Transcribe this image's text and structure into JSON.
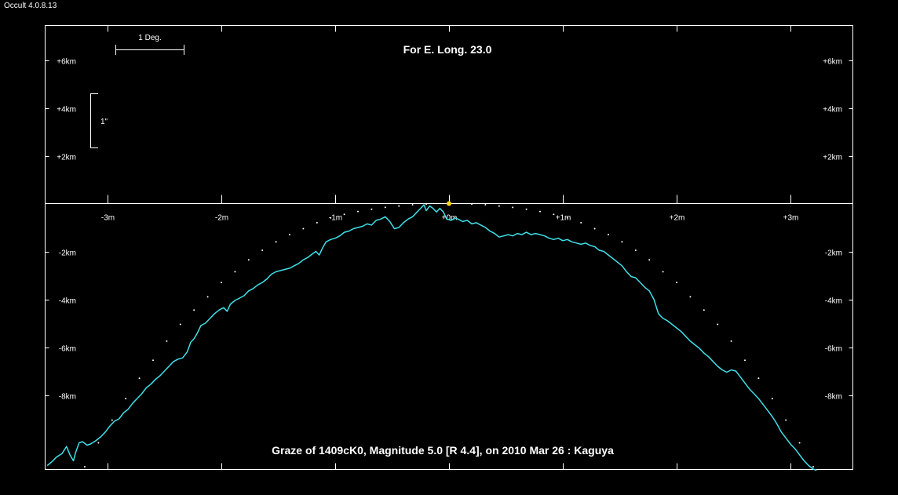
{
  "window": {
    "title": "Occult 4.0.8.13"
  },
  "colors": {
    "background": "#000000",
    "foreground": "#ffffff",
    "profile": "#3fe0e8",
    "star": "#ffd700"
  },
  "chart_data": {
    "type": "line",
    "title": "For E. Long. 23.0",
    "caption": "Graze of  1409cK0,  Magnitude 5.0 [R 4.4],  on 2010 Mar 26  :  Kaguya",
    "scale_bar_deg": "1 Deg.",
    "scale_bar_arcsec": "1\"",
    "x_unit": "m",
    "y_unit": "km",
    "xlim": [
      -3.55,
      3.55
    ],
    "ylim": [
      -11.2,
      7.4
    ],
    "x_ticks": [
      {
        "value": -3,
        "label": "-3m"
      },
      {
        "value": -2,
        "label": "-2m"
      },
      {
        "value": -1,
        "label": "-1m"
      },
      {
        "value": 0,
        "label": "+0m"
      },
      {
        "value": 1,
        "label": "+1m"
      },
      {
        "value": 2,
        "label": "+2m"
      },
      {
        "value": 3,
        "label": "+3m"
      }
    ],
    "y_ticks_left": [
      {
        "value": 6,
        "label": "+6km"
      },
      {
        "value": 4,
        "label": "+4km"
      },
      {
        "value": 2,
        "label": "+2km"
      },
      {
        "value": -2,
        "label": "-2km"
      },
      {
        "value": -4,
        "label": "-4km"
      },
      {
        "value": -6,
        "label": "-6km"
      },
      {
        "value": -8,
        "label": "-8km"
      }
    ],
    "y_ticks_right": [
      {
        "value": 6,
        "label": "+6km"
      },
      {
        "value": 4,
        "label": "+4km"
      },
      {
        "value": 2,
        "label": "+2km"
      },
      {
        "value": -2,
        "label": "-2km"
      },
      {
        "value": -4,
        "label": "-4km"
      },
      {
        "value": -6,
        "label": "-6km"
      },
      {
        "value": -8,
        "label": "-8km"
      }
    ],
    "star": {
      "x": 0.0,
      "y": 0.0
    },
    "series": [
      {
        "style": "line",
        "points": [
          [
            -3.53,
            -10.95
          ],
          [
            -3.48,
            -10.75
          ],
          [
            -3.45,
            -10.6
          ],
          [
            -3.4,
            -10.45
          ],
          [
            -3.36,
            -10.15
          ],
          [
            -3.33,
            -10.5
          ],
          [
            -3.3,
            -10.75
          ],
          [
            -3.28,
            -10.4
          ],
          [
            -3.25,
            -10.0
          ],
          [
            -3.22,
            -9.95
          ],
          [
            -3.18,
            -10.1
          ],
          [
            -3.15,
            -10.05
          ],
          [
            -3.1,
            -9.9
          ],
          [
            -3.06,
            -9.75
          ],
          [
            -3.02,
            -9.55
          ],
          [
            -2.98,
            -9.3
          ],
          [
            -2.94,
            -9.1
          ],
          [
            -2.9,
            -9.0
          ],
          [
            -2.86,
            -8.75
          ],
          [
            -2.82,
            -8.6
          ],
          [
            -2.78,
            -8.35
          ],
          [
            -2.74,
            -8.15
          ],
          [
            -2.7,
            -7.95
          ],
          [
            -2.66,
            -7.7
          ],
          [
            -2.62,
            -7.55
          ],
          [
            -2.58,
            -7.35
          ],
          [
            -2.54,
            -7.2
          ],
          [
            -2.5,
            -7.0
          ],
          [
            -2.46,
            -6.8
          ],
          [
            -2.42,
            -6.6
          ],
          [
            -2.38,
            -6.5
          ],
          [
            -2.34,
            -6.45
          ],
          [
            -2.3,
            -6.2
          ],
          [
            -2.27,
            -5.8
          ],
          [
            -2.24,
            -5.65
          ],
          [
            -2.21,
            -5.4
          ],
          [
            -2.18,
            -5.1
          ],
          [
            -2.14,
            -5.0
          ],
          [
            -2.1,
            -4.8
          ],
          [
            -2.06,
            -4.6
          ],
          [
            -2.02,
            -4.45
          ],
          [
            -1.98,
            -4.35
          ],
          [
            -1.95,
            -4.5
          ],
          [
            -1.92,
            -4.2
          ],
          [
            -1.88,
            -4.05
          ],
          [
            -1.84,
            -3.95
          ],
          [
            -1.8,
            -3.85
          ],
          [
            -1.76,
            -3.65
          ],
          [
            -1.72,
            -3.55
          ],
          [
            -1.68,
            -3.4
          ],
          [
            -1.64,
            -3.3
          ],
          [
            -1.6,
            -3.15
          ],
          [
            -1.56,
            -2.95
          ],
          [
            -1.52,
            -2.85
          ],
          [
            -1.48,
            -2.8
          ],
          [
            -1.44,
            -2.75
          ],
          [
            -1.4,
            -2.7
          ],
          [
            -1.36,
            -2.6
          ],
          [
            -1.32,
            -2.5
          ],
          [
            -1.28,
            -2.35
          ],
          [
            -1.24,
            -2.25
          ],
          [
            -1.2,
            -2.1
          ],
          [
            -1.17,
            -2.0
          ],
          [
            -1.14,
            -2.15
          ],
          [
            -1.11,
            -1.85
          ],
          [
            -1.08,
            -1.6
          ],
          [
            -1.04,
            -1.5
          ],
          [
            -1.0,
            -1.45
          ],
          [
            -0.96,
            -1.35
          ],
          [
            -0.92,
            -1.2
          ],
          [
            -0.88,
            -1.15
          ],
          [
            -0.84,
            -1.05
          ],
          [
            -0.8,
            -1.0
          ],
          [
            -0.76,
            -0.95
          ],
          [
            -0.72,
            -0.85
          ],
          [
            -0.68,
            -0.9
          ],
          [
            -0.64,
            -0.7
          ],
          [
            -0.6,
            -0.65
          ],
          [
            -0.56,
            -0.55
          ],
          [
            -0.52,
            -0.75
          ],
          [
            -0.48,
            -1.05
          ],
          [
            -0.44,
            -1.0
          ],
          [
            -0.4,
            -0.8
          ],
          [
            -0.36,
            -0.65
          ],
          [
            -0.32,
            -0.55
          ],
          [
            -0.28,
            -0.35
          ],
          [
            -0.25,
            -0.2
          ],
          [
            -0.22,
            -0.05
          ],
          [
            -0.2,
            -0.3
          ],
          [
            -0.17,
            -0.1
          ],
          [
            -0.14,
            -0.2
          ],
          [
            -0.11,
            -0.35
          ],
          [
            -0.08,
            -0.2
          ],
          [
            -0.05,
            -0.35
          ],
          [
            -0.02,
            -0.65
          ],
          [
            0.02,
            -0.7
          ],
          [
            0.05,
            -0.6
          ],
          [
            0.08,
            -0.65
          ],
          [
            0.12,
            -0.75
          ],
          [
            0.16,
            -0.7
          ],
          [
            0.2,
            -0.85
          ],
          [
            0.24,
            -0.8
          ],
          [
            0.28,
            -0.9
          ],
          [
            0.32,
            -1.0
          ],
          [
            0.36,
            -1.15
          ],
          [
            0.4,
            -1.25
          ],
          [
            0.44,
            -1.4
          ],
          [
            0.48,
            -1.35
          ],
          [
            0.52,
            -1.3
          ],
          [
            0.56,
            -1.35
          ],
          [
            0.6,
            -1.25
          ],
          [
            0.64,
            -1.3
          ],
          [
            0.68,
            -1.2
          ],
          [
            0.72,
            -1.3
          ],
          [
            0.76,
            -1.25
          ],
          [
            0.8,
            -1.3
          ],
          [
            0.84,
            -1.35
          ],
          [
            0.88,
            -1.45
          ],
          [
            0.92,
            -1.5
          ],
          [
            0.96,
            -1.45
          ],
          [
            1.0,
            -1.55
          ],
          [
            1.04,
            -1.5
          ],
          [
            1.08,
            -1.6
          ],
          [
            1.12,
            -1.65
          ],
          [
            1.16,
            -1.7
          ],
          [
            1.2,
            -1.65
          ],
          [
            1.24,
            -1.75
          ],
          [
            1.28,
            -1.8
          ],
          [
            1.32,
            -1.95
          ],
          [
            1.36,
            -2.0
          ],
          [
            1.4,
            -2.15
          ],
          [
            1.44,
            -2.3
          ],
          [
            1.48,
            -2.45
          ],
          [
            1.52,
            -2.6
          ],
          [
            1.56,
            -2.85
          ],
          [
            1.6,
            -3.05
          ],
          [
            1.64,
            -3.1
          ],
          [
            1.68,
            -3.3
          ],
          [
            1.72,
            -3.5
          ],
          [
            1.76,
            -3.65
          ],
          [
            1.8,
            -4.0
          ],
          [
            1.84,
            -4.6
          ],
          [
            1.88,
            -4.8
          ],
          [
            1.92,
            -4.9
          ],
          [
            1.96,
            -5.05
          ],
          [
            2.0,
            -5.2
          ],
          [
            2.04,
            -5.35
          ],
          [
            2.08,
            -5.55
          ],
          [
            2.12,
            -5.75
          ],
          [
            2.16,
            -5.9
          ],
          [
            2.2,
            -6.05
          ],
          [
            2.24,
            -6.25
          ],
          [
            2.28,
            -6.4
          ],
          [
            2.32,
            -6.6
          ],
          [
            2.36,
            -6.8
          ],
          [
            2.4,
            -6.95
          ],
          [
            2.44,
            -7.05
          ],
          [
            2.48,
            -6.95
          ],
          [
            2.52,
            -7.0
          ],
          [
            2.56,
            -7.25
          ],
          [
            2.6,
            -7.5
          ],
          [
            2.64,
            -7.75
          ],
          [
            2.68,
            -7.95
          ],
          [
            2.72,
            -8.15
          ],
          [
            2.76,
            -8.4
          ],
          [
            2.8,
            -8.65
          ],
          [
            2.84,
            -8.9
          ],
          [
            2.88,
            -9.2
          ],
          [
            2.92,
            -9.55
          ],
          [
            2.96,
            -9.8
          ],
          [
            3.0,
            -10.05
          ],
          [
            3.04,
            -10.25
          ],
          [
            3.08,
            -10.5
          ],
          [
            3.12,
            -10.75
          ],
          [
            3.16,
            -10.95
          ],
          [
            3.2,
            -11.1
          ],
          [
            3.23,
            -11.15
          ]
        ]
      },
      {
        "style": "dots",
        "points": [
          [
            -3.2,
            -11.0
          ],
          [
            -3.08,
            -10.0
          ],
          [
            -2.96,
            -9.05
          ],
          [
            -2.84,
            -8.15
          ],
          [
            -2.72,
            -7.3
          ],
          [
            -2.6,
            -6.55
          ],
          [
            -2.48,
            -5.75
          ],
          [
            -2.36,
            -5.05
          ],
          [
            -2.24,
            -4.45
          ],
          [
            -2.12,
            -3.9
          ],
          [
            -2.0,
            -3.3
          ],
          [
            -1.88,
            -2.85
          ],
          [
            -1.76,
            -2.35
          ],
          [
            -1.64,
            -1.95
          ],
          [
            -1.52,
            -1.6
          ],
          [
            -1.4,
            -1.3
          ],
          [
            -1.28,
            -1.05
          ],
          [
            -1.16,
            -0.8
          ],
          [
            -1.04,
            -0.6
          ],
          [
            -0.92,
            -0.45
          ],
          [
            -0.8,
            -0.33
          ],
          [
            -0.68,
            -0.24
          ],
          [
            -0.56,
            -0.16
          ],
          [
            -0.44,
            -0.1
          ],
          [
            -0.32,
            -0.05
          ],
          [
            -0.2,
            -0.02
          ],
          [
            0.2,
            -0.02
          ],
          [
            0.32,
            -0.05
          ],
          [
            0.44,
            -0.1
          ],
          [
            0.56,
            -0.16
          ],
          [
            0.68,
            -0.24
          ],
          [
            0.8,
            -0.33
          ],
          [
            0.92,
            -0.45
          ],
          [
            1.04,
            -0.6
          ],
          [
            1.16,
            -0.8
          ],
          [
            1.28,
            -1.05
          ],
          [
            1.4,
            -1.3
          ],
          [
            1.52,
            -1.6
          ],
          [
            1.64,
            -1.95
          ],
          [
            1.76,
            -2.35
          ],
          [
            1.88,
            -2.85
          ],
          [
            2.0,
            -3.3
          ],
          [
            2.12,
            -3.9
          ],
          [
            2.24,
            -4.45
          ],
          [
            2.36,
            -5.05
          ],
          [
            2.48,
            -5.75
          ],
          [
            2.6,
            -6.55
          ],
          [
            2.72,
            -7.3
          ],
          [
            2.84,
            -8.15
          ],
          [
            2.96,
            -9.05
          ],
          [
            3.08,
            -10.0
          ],
          [
            3.2,
            -11.0
          ]
        ]
      }
    ]
  }
}
